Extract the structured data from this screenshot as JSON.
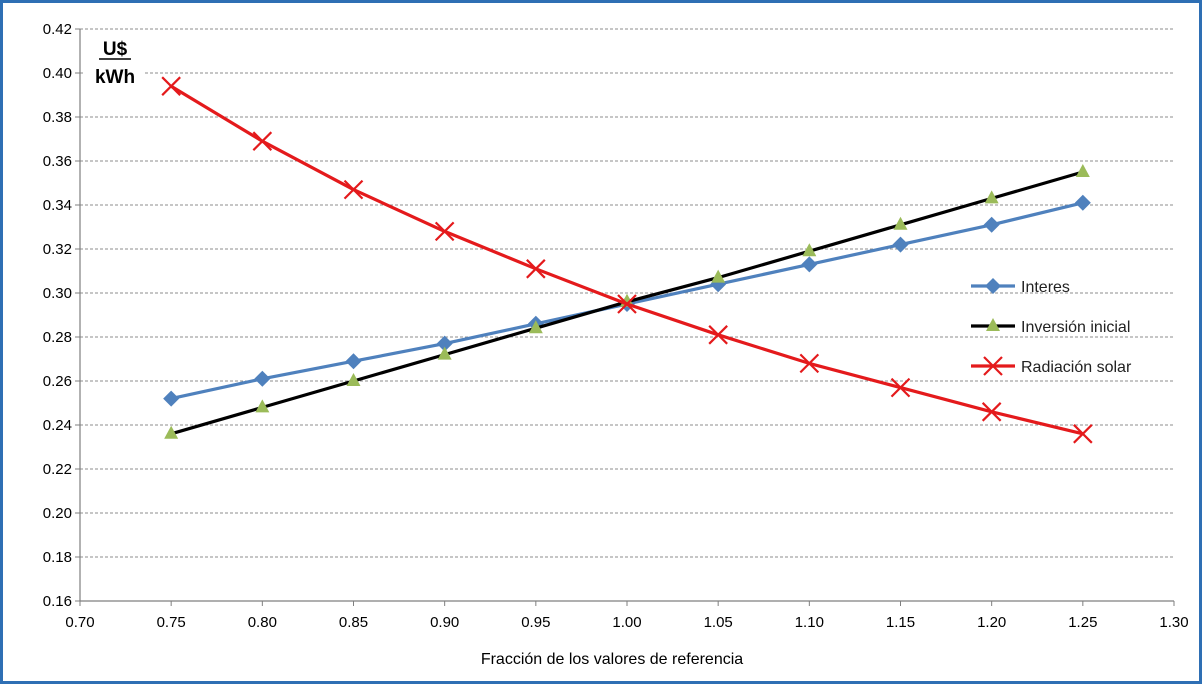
{
  "chart_data": {
    "type": "line",
    "title": "",
    "unit_label": {
      "numerator": "U$",
      "denominator": "kWh"
    },
    "xlabel": "Fracción de los valores de referencia",
    "ylabel": "",
    "xlim": [
      0.7,
      1.3
    ],
    "ylim": [
      0.16,
      0.42
    ],
    "x_ticks": [
      "0.70",
      "0.75",
      "0.80",
      "0.85",
      "0.90",
      "0.95",
      "1.00",
      "1.05",
      "1.10",
      "1.15",
      "1.20",
      "1.25",
      "1.30"
    ],
    "y_ticks": [
      "0.16",
      "0.18",
      "0.20",
      "0.22",
      "0.24",
      "0.26",
      "0.28",
      "0.30",
      "0.32",
      "0.34",
      "0.36",
      "0.38",
      "0.40",
      "0.42"
    ],
    "grid": "horizontal-dashed",
    "legend_position": "right",
    "x": [
      0.75,
      0.8,
      0.85,
      0.9,
      0.95,
      1.0,
      1.05,
      1.1,
      1.15,
      1.2,
      1.25
    ],
    "series": [
      {
        "name": "Interes",
        "color": "#4f81bd",
        "marker": "diamond",
        "values": [
          0.252,
          0.261,
          0.269,
          0.277,
          0.286,
          0.295,
          0.304,
          0.313,
          0.322,
          0.331,
          0.341
        ]
      },
      {
        "name": "Inversión inicial",
        "color": "#000000",
        "marker_color": "#9bbb59",
        "marker": "triangle",
        "values": [
          0.236,
          0.248,
          0.26,
          0.272,
          0.284,
          0.296,
          0.307,
          0.319,
          0.331,
          0.343,
          0.355
        ]
      },
      {
        "name": "Radiación solar",
        "color": "#e41a1c",
        "marker": "x",
        "values": [
          0.394,
          0.369,
          0.347,
          0.328,
          0.311,
          0.295,
          0.281,
          0.268,
          0.257,
          0.246,
          0.236
        ]
      }
    ]
  }
}
